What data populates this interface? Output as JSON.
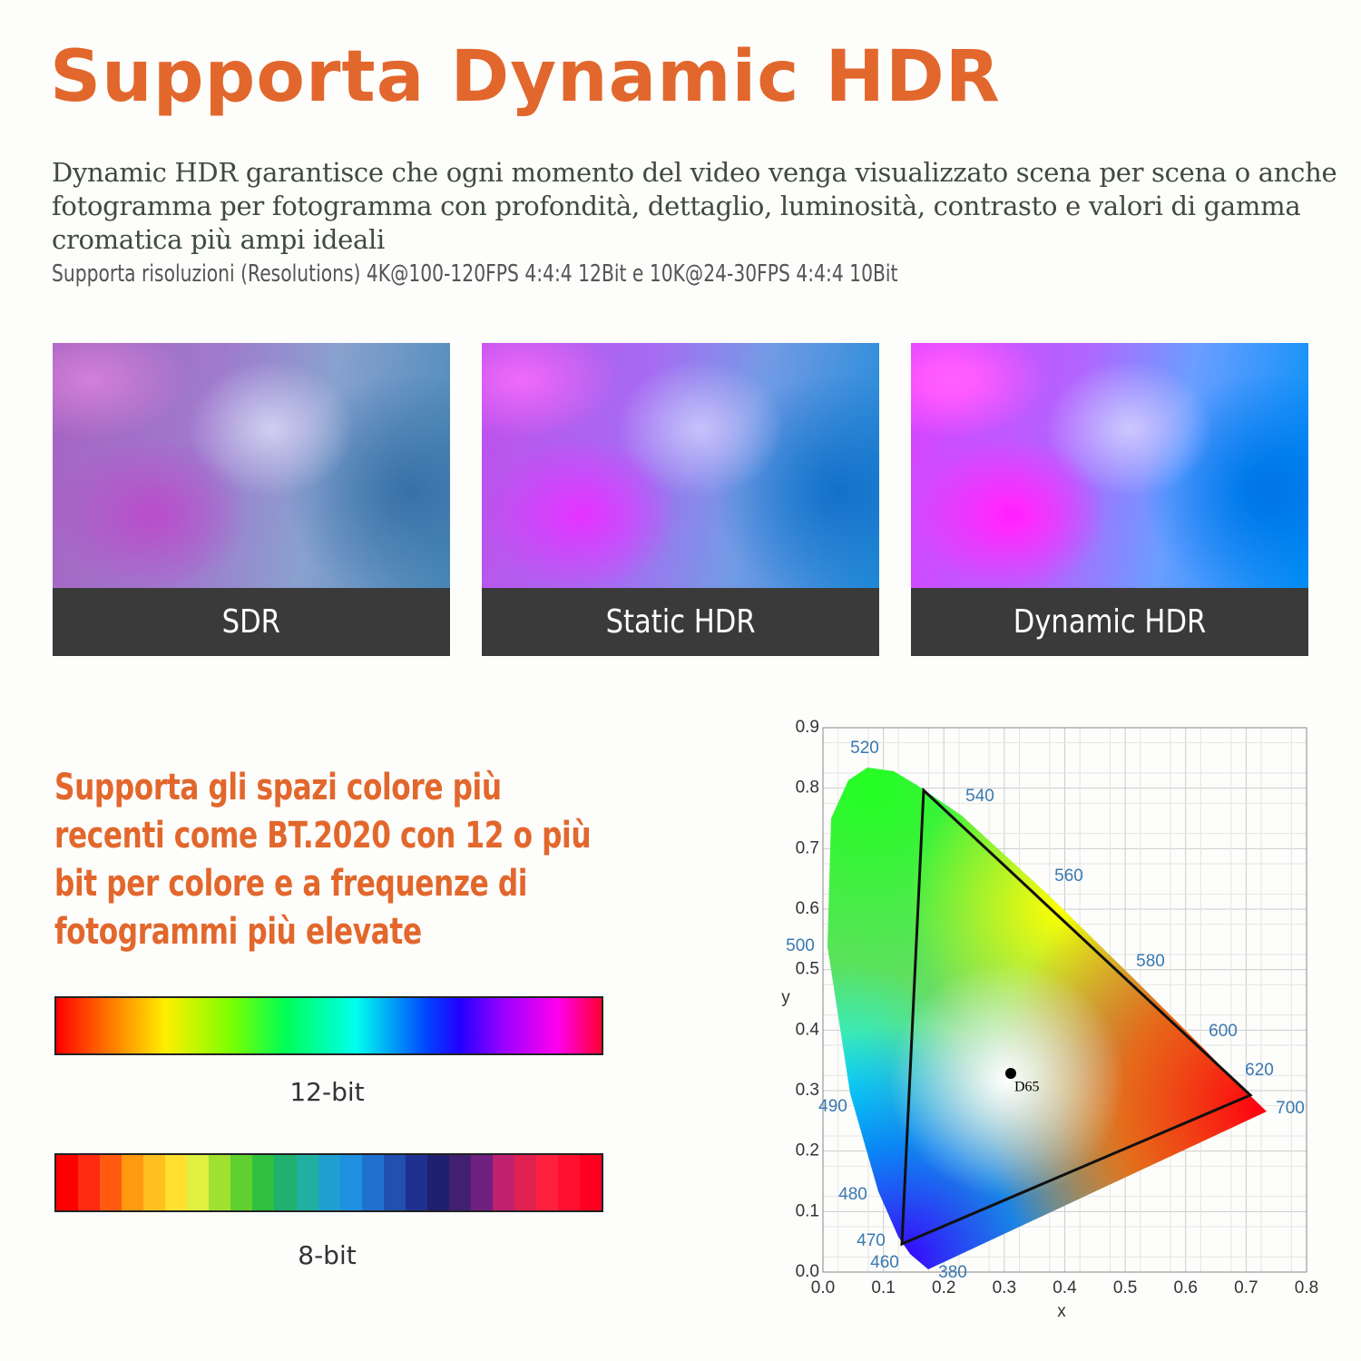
{
  "header": {
    "title": "Supporta Dynamic HDR",
    "description": "Dynamic HDR garantisce che ogni momento del video venga visualizzato scena per scena o anche fotogramma per fotogramma con profondità, dettaglio, luminosità, contrasto e valori di gamma cromatica più ampi ideali",
    "resolutions": "Supporta risoluzioni (Resolutions) 4K@100-120FPS 4:4:4 12Bit e 10K@24-30FPS 4:4:4 10Bit"
  },
  "comparison": {
    "panels": [
      "SDR",
      "Static HDR",
      "Dynamic HDR"
    ]
  },
  "color_depth": {
    "heading": "Supporta gli spazi colore più recenti come BT.2020 con 12 o più bit per colore e a frequenze di fotogrammi più elevate",
    "bars": [
      "12-bit",
      "8-bit"
    ]
  },
  "cie_diagram": {
    "xlabel": "x",
    "ylabel": "y",
    "xlim": [
      0,
      0.8
    ],
    "ylim": [
      0,
      0.9
    ],
    "xticks": [
      {
        "value": 0,
        "label": "0.0"
      },
      0.1,
      0.2,
      0.3,
      0.4,
      0.5,
      0.6,
      0.7,
      0.8
    ],
    "yticks": [
      {
        "value": 0,
        "label": "0.0"
      },
      0.1,
      0.2,
      0.3,
      0.4,
      0.5,
      0.6,
      0.7,
      0.8,
      0.9
    ],
    "wavelengths": [
      520,
      540,
      560,
      580,
      600,
      620,
      700,
      500,
      490,
      480,
      470,
      460,
      380
    ],
    "white_point": "D65"
  }
}
